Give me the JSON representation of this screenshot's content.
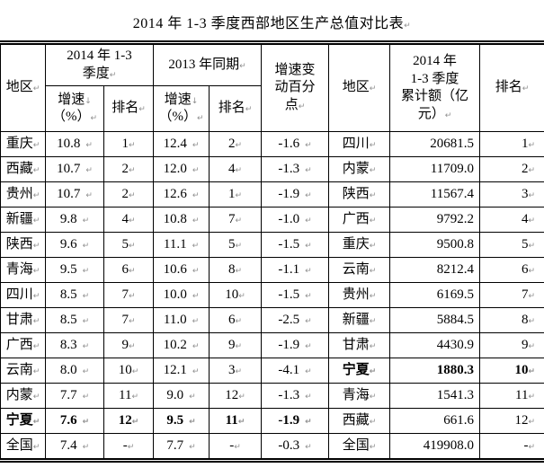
{
  "title": "2014 年 1-3 季度西部地区生产总值对比表",
  "marks": {
    "para": "↵",
    "linebreak": "↓"
  },
  "colors": {
    "text": "#000000",
    "border": "#000000",
    "mark": "#8f8f8f",
    "background": "#ffffff"
  },
  "header": {
    "region": "地区",
    "period_2014": "2014 年 1-3\n季度",
    "period_2013": "2013 年同期",
    "growth_line1": "增速",
    "growth_line2": "（%）",
    "rank": "排名",
    "delta": "增速变\n动百分\n点",
    "region_right": "地区",
    "amount": "2014 年\n1-3 季度\n累计额（亿\n元）",
    "rank_right": "排名"
  },
  "rows": [
    {
      "region": "重庆",
      "g2014": "10.8",
      "r2014": "1",
      "g2013": "12.4",
      "r2013": "2",
      "delta": "-1.6",
      "region2": "四川",
      "amount": "20681.5",
      "rank2": "1",
      "bold_left": false,
      "bold_right": false
    },
    {
      "region": "西藏",
      "g2014": "10.7",
      "r2014": "2",
      "g2013": "12.0",
      "r2013": "4",
      "delta": "-1.3",
      "region2": "内蒙",
      "amount": "11709.0",
      "rank2": "2",
      "bold_left": false,
      "bold_right": false
    },
    {
      "region": "贵州",
      "g2014": "10.7",
      "r2014": "2",
      "g2013": "12.6",
      "r2013": "1",
      "delta": "-1.9",
      "region2": "陕西",
      "amount": "11567.4",
      "rank2": "3",
      "bold_left": false,
      "bold_right": false
    },
    {
      "region": "新疆",
      "g2014": "9.8",
      "r2014": "4",
      "g2013": "10.8",
      "r2013": "7",
      "delta": "-1.0",
      "region2": "广西",
      "amount": "9792.2",
      "rank2": "4",
      "bold_left": false,
      "bold_right": false
    },
    {
      "region": "陕西",
      "g2014": "9.6",
      "r2014": "5",
      "g2013": "11.1",
      "r2013": "5",
      "delta": "-1.5",
      "region2": "重庆",
      "amount": "9500.8",
      "rank2": "5",
      "bold_left": false,
      "bold_right": false
    },
    {
      "region": "青海",
      "g2014": "9.5",
      "r2014": "6",
      "g2013": "10.6",
      "r2013": "8",
      "delta": "-1.1",
      "region2": "云南",
      "amount": "8212.4",
      "rank2": "6",
      "bold_left": false,
      "bold_right": false
    },
    {
      "region": "四川",
      "g2014": "8.5",
      "r2014": "7",
      "g2013": "10.0",
      "r2013": "10",
      "delta": "-1.5",
      "region2": "贵州",
      "amount": "6169.5",
      "rank2": "7",
      "bold_left": false,
      "bold_right": false
    },
    {
      "region": "甘肃",
      "g2014": "8.5",
      "r2014": "7",
      "g2013": "11.0",
      "r2013": "6",
      "delta": "-2.5",
      "region2": "新疆",
      "amount": "5884.5",
      "rank2": "8",
      "bold_left": false,
      "bold_right": false
    },
    {
      "region": "广西",
      "g2014": "8.3",
      "r2014": "9",
      "g2013": "10.2",
      "r2013": "9",
      "delta": "-1.9",
      "region2": "甘肃",
      "amount": "4430.9",
      "rank2": "9",
      "bold_left": false,
      "bold_right": false
    },
    {
      "region": "云南",
      "g2014": "8.0",
      "r2014": "10",
      "g2013": "12.1",
      "r2013": "3",
      "delta": "-4.1",
      "region2": "宁夏",
      "amount": "1880.3",
      "rank2": "10",
      "bold_left": false,
      "bold_right": true
    },
    {
      "region": "内蒙",
      "g2014": "7.7",
      "r2014": "11",
      "g2013": "9.0",
      "r2013": "12",
      "delta": "-1.3",
      "region2": "青海",
      "amount": "1541.3",
      "rank2": "11",
      "bold_left": false,
      "bold_right": false
    },
    {
      "region": "宁夏",
      "g2014": "7.6",
      "r2014": "12",
      "g2013": "9.5",
      "r2013": "11",
      "delta": "-1.9",
      "region2": "西藏",
      "amount": "661.6",
      "rank2": "12",
      "bold_left": true,
      "bold_right": false
    },
    {
      "region": "全国",
      "g2014": "7.4",
      "r2014": "-",
      "g2013": "7.7",
      "r2013": "-",
      "delta": "-0.3",
      "region2": "全国",
      "amount": "419908.0",
      "rank2": "-",
      "bold_left": false,
      "bold_right": false
    }
  ]
}
